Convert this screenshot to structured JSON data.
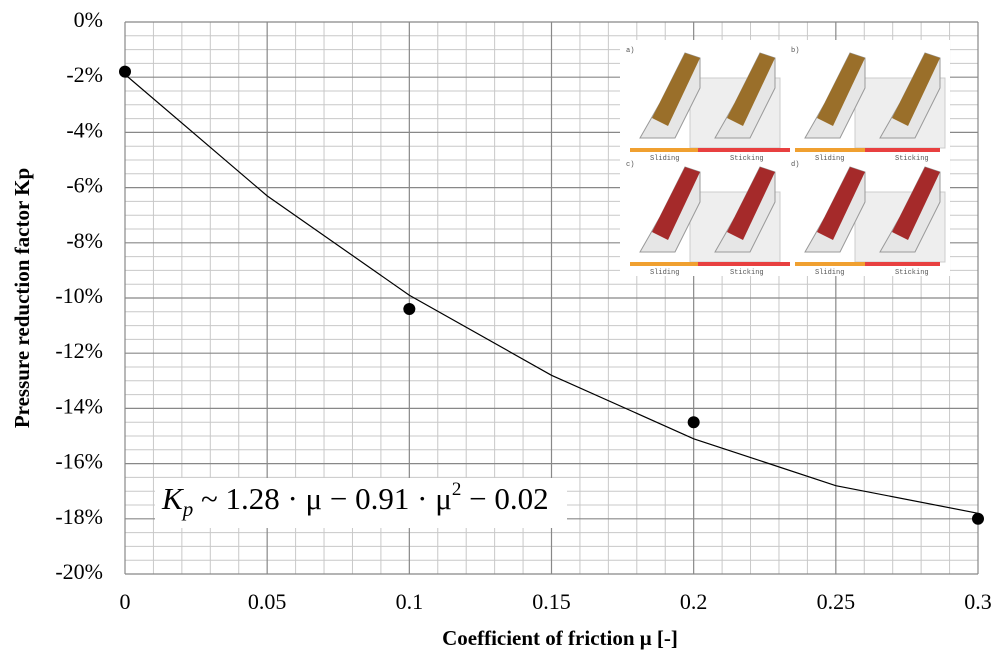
{
  "chart_data": {
    "type": "scatter",
    "x_label": "Coefficient of friction μ [-]",
    "y_label": "Pressure reduction factor Kp",
    "equation": [
      "K",
      "p",
      " ~ 1.28 · μ − 0.91 · μ",
      "2",
      " − 0.02"
    ],
    "x": [
      0,
      0.1,
      0.2,
      0.3
    ],
    "values": [
      -1.8,
      -10.4,
      -14.5,
      -18.0
    ],
    "color": "#000000",
    "fit": {
      "color": "#000000",
      "x": [
        0,
        0.05,
        0.1,
        0.15,
        0.2,
        0.25,
        0.3
      ],
      "values": [
        -1.9,
        -6.3,
        -9.9,
        -12.8,
        -15.1,
        -16.8,
        -17.8
      ]
    },
    "xlim": [
      0,
      0.3
    ],
    "xticks": [
      0,
      0.05,
      0.1,
      0.15,
      0.2,
      0.25,
      0.3
    ],
    "ylim": [
      -20,
      0
    ],
    "yticks": [
      {
        "value": 0,
        "label": "0%"
      },
      {
        "value": -2,
        "label": "-2%"
      },
      {
        "value": -4,
        "label": "-4%"
      },
      {
        "value": -6,
        "label": "-6%"
      },
      {
        "value": -8,
        "label": "-8%"
      },
      {
        "value": -10,
        "label": "-10%"
      },
      {
        "value": -12,
        "label": "-12%"
      },
      {
        "value": -14,
        "label": "-14%"
      },
      {
        "value": -16,
        "label": "-16%"
      },
      {
        "value": -18,
        "label": "-18%"
      },
      {
        "value": -20,
        "label": "-20%"
      }
    ],
    "grid": true,
    "minor_x": 5,
    "minor_y": 4,
    "inset": {
      "panels": [
        "a)",
        "b)",
        "c)",
        "d)"
      ],
      "legend": [
        "Sliding",
        "Sticking"
      ]
    }
  }
}
